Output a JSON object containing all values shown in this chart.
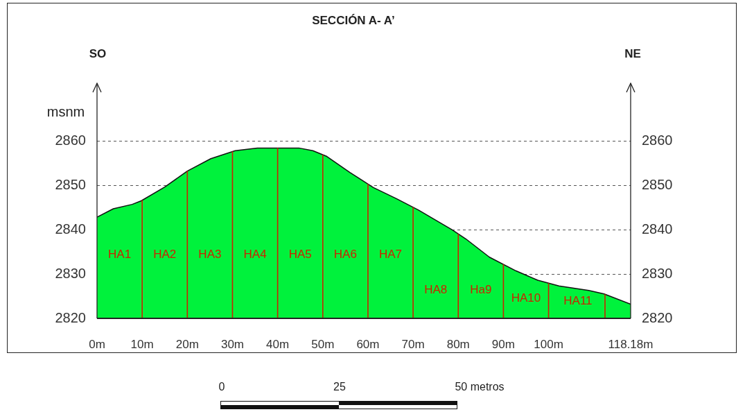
{
  "chart_data": {
    "type": "area",
    "title": "SECCIÓN A- A’",
    "ylabel": "msnm",
    "color": "#00f23c",
    "x": [
      0,
      3.6,
      7.8,
      9.8,
      15,
      20,
      25.2,
      30.6,
      35.5,
      44.7,
      47.8,
      50.9,
      56,
      61.2,
      66.3,
      71.2,
      78.6,
      81.7,
      86.9,
      92.8,
      97.6,
      102.3,
      108.9,
      112.3,
      118.18
    ],
    "values": [
      2842.8,
      2844.7,
      2845.7,
      2846.5,
      2849.6,
      2853.2,
      2856,
      2857.8,
      2858.4,
      2858.4,
      2857.8,
      2856.5,
      2852.9,
      2849.5,
      2847,
      2844.4,
      2840,
      2837.9,
      2833.8,
      2830.7,
      2828.6,
      2827.3,
      2826.3,
      2825.5,
      2823.2
    ],
    "xlim": [
      0,
      118.18
    ],
    "xticks": [
      {
        "value": 0,
        "label": "0m"
      },
      {
        "value": 10,
        "label": "10m"
      },
      {
        "value": 20,
        "label": "20m"
      },
      {
        "value": 30,
        "label": "30m"
      },
      {
        "value": 40,
        "label": "40m"
      },
      {
        "value": 50,
        "label": "50m"
      },
      {
        "value": 60,
        "label": "60m"
      },
      {
        "value": 70,
        "label": "70m"
      },
      {
        "value": 80,
        "label": "80m"
      },
      {
        "value": 90,
        "label": "90m"
      },
      {
        "value": 100,
        "label": "100m"
      },
      {
        "value": 118.18,
        "label": "118.18m"
      }
    ],
    "ylim": [
      2820,
      2873
    ],
    "yticks": [
      2820,
      2830,
      2840,
      2850,
      2860
    ],
    "y2lim": [
      2820,
      2873
    ],
    "y2ticks": [
      2820,
      2830,
      2840,
      2850,
      2860
    ],
    "grid": "y",
    "ref_lines": [
      {
        "axis": "x",
        "value": 10,
        "color": "#cc2200"
      },
      {
        "axis": "x",
        "value": 20,
        "color": "#cc2200"
      },
      {
        "axis": "x",
        "value": 30,
        "color": "#cc2200"
      },
      {
        "axis": "x",
        "value": 40,
        "color": "#cc2200"
      },
      {
        "axis": "x",
        "value": 50,
        "color": "#cc2200"
      },
      {
        "axis": "x",
        "value": 60,
        "color": "#cc2200"
      },
      {
        "axis": "x",
        "value": 70,
        "color": "#cc2200"
      },
      {
        "axis": "x",
        "value": 80,
        "color": "#cc2200"
      },
      {
        "axis": "x",
        "value": 90,
        "color": "#cc2200"
      },
      {
        "axis": "x",
        "value": 100,
        "color": "#cc2200"
      },
      {
        "axis": "x",
        "value": 112.5,
        "color": "#cc2200"
      }
    ],
    "annotations": [
      "SO",
      "NE",
      "0",
      "25",
      "50 metros",
      "HA1",
      "HA2",
      "HA3",
      "HA4",
      "HA5",
      "HA6",
      "HA7",
      "HA8",
      "Ha9",
      "HA10",
      "HA11"
    ]
  }
}
